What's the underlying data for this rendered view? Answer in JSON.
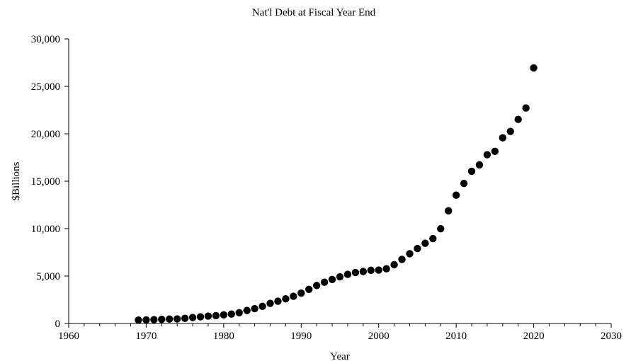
{
  "chart_data": {
    "type": "scatter",
    "title": "Nat'l Debt at Fiscal Year End",
    "xlabel": "Year",
    "ylabel": "$Billions",
    "xlim": [
      1960,
      2030
    ],
    "ylim": [
      0,
      30000
    ],
    "x_ticks": [
      1960,
      1970,
      1980,
      1990,
      2000,
      2010,
      2020,
      2030
    ],
    "x_tick_labels": [
      "1960",
      "1970",
      "1980",
      "1990",
      "2000",
      "2010",
      "2020",
      "2030"
    ],
    "y_ticks": [
      0,
      5000,
      10000,
      15000,
      20000,
      25000,
      30000
    ],
    "y_tick_labels": [
      "0",
      "5,000",
      "10,000",
      "15,000",
      "20,000",
      "25,000",
      "30,000"
    ],
    "grid": false,
    "legend": "none",
    "marker_color": "#000000",
    "points": [
      {
        "x": 1969,
        "y": 354
      },
      {
        "x": 1970,
        "y": 381
      },
      {
        "x": 1971,
        "y": 408
      },
      {
        "x": 1972,
        "y": 436
      },
      {
        "x": 1973,
        "y": 466
      },
      {
        "x": 1974,
        "y": 484
      },
      {
        "x": 1975,
        "y": 542
      },
      {
        "x": 1976,
        "y": 629
      },
      {
        "x": 1977,
        "y": 706
      },
      {
        "x": 1978,
        "y": 777
      },
      {
        "x": 1979,
        "y": 829
      },
      {
        "x": 1980,
        "y": 909
      },
      {
        "x": 1981,
        "y": 995
      },
      {
        "x": 1982,
        "y": 1137
      },
      {
        "x": 1983,
        "y": 1372
      },
      {
        "x": 1984,
        "y": 1565
      },
      {
        "x": 1985,
        "y": 1818
      },
      {
        "x": 1986,
        "y": 2121
      },
      {
        "x": 1987,
        "y": 2346
      },
      {
        "x": 1988,
        "y": 2601
      },
      {
        "x": 1989,
        "y": 2868
      },
      {
        "x": 1990,
        "y": 3206
      },
      {
        "x": 1991,
        "y": 3598
      },
      {
        "x": 1992,
        "y": 4002
      },
      {
        "x": 1993,
        "y": 4351
      },
      {
        "x": 1994,
        "y": 4643
      },
      {
        "x": 1995,
        "y": 4921
      },
      {
        "x": 1996,
        "y": 5181
      },
      {
        "x": 1997,
        "y": 5369
      },
      {
        "x": 1998,
        "y": 5478
      },
      {
        "x": 1999,
        "y": 5606
      },
      {
        "x": 2000,
        "y": 5629
      },
      {
        "x": 2001,
        "y": 5770
      },
      {
        "x": 2002,
        "y": 6198
      },
      {
        "x": 2003,
        "y": 6760
      },
      {
        "x": 2004,
        "y": 7355
      },
      {
        "x": 2005,
        "y": 7905
      },
      {
        "x": 2006,
        "y": 8451
      },
      {
        "x": 2007,
        "y": 8951
      },
      {
        "x": 2008,
        "y": 9986
      },
      {
        "x": 2009,
        "y": 11876
      },
      {
        "x": 2010,
        "y": 13529
      },
      {
        "x": 2011,
        "y": 14764
      },
      {
        "x": 2012,
        "y": 16051
      },
      {
        "x": 2013,
        "y": 16719
      },
      {
        "x": 2014,
        "y": 17794
      },
      {
        "x": 2015,
        "y": 18151
      },
      {
        "x": 2016,
        "y": 19573
      },
      {
        "x": 2017,
        "y": 20245
      },
      {
        "x": 2018,
        "y": 21516
      },
      {
        "x": 2019,
        "y": 22719
      },
      {
        "x": 2020,
        "y": 26945
      }
    ]
  }
}
